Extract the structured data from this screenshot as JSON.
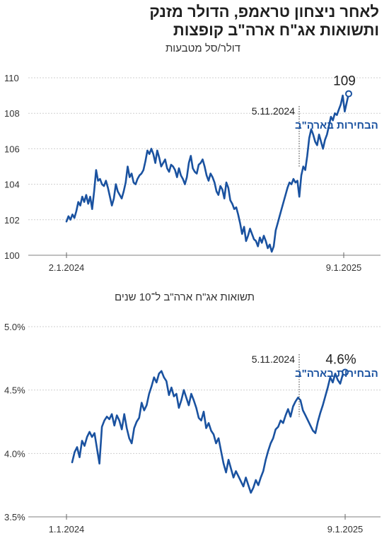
{
  "headline": {
    "line1": "לאחר ניצחון טראמפ, הדולר מזנק",
    "line2": "ותשואות אג\"ח ארה\"ב קופצות"
  },
  "colors": {
    "line": "#1a52a0",
    "accent_text": "#1a52a0",
    "axis": "#9a9a9a",
    "grid": "#cfcfcf"
  },
  "chart_data": [
    {
      "type": "line",
      "subtitle": "דולר/סל מטבעות",
      "ylim": [
        100,
        110
      ],
      "yticks": [
        "100",
        "102",
        "104",
        "106",
        "108",
        "110"
      ],
      "xtick_labels": [
        "2.1.2024",
        "9.1.2025"
      ],
      "end_label": "109",
      "annotation": {
        "date": "5.11.2024",
        "label": "הבחירות בארה\"ב"
      },
      "series": [
        {
          "values": [
            101.9,
            102.2,
            102.0,
            102.3,
            102.1,
            102.5,
            103.0,
            102.8,
            103.3,
            103.0,
            103.4,
            102.9,
            103.3,
            102.6,
            103.6,
            104.8,
            104.2,
            104.3,
            104.0,
            103.9,
            104.2,
            103.8,
            103.3,
            102.8,
            103.2,
            104.0,
            103.6,
            103.4,
            103.2,
            103.6,
            104.1,
            105.0,
            104.4,
            104.6,
            104.1,
            104.0,
            104.3,
            104.5,
            104.6,
            104.8,
            105.3,
            105.9,
            105.7,
            106.0,
            105.7,
            105.2,
            105.9,
            105.5,
            105.0,
            105.2,
            105.4,
            104.9,
            104.7,
            105.1,
            105.0,
            104.8,
            104.4,
            104.9,
            104.5,
            104.3,
            104.0,
            104.4,
            105.2,
            105.6,
            104.9,
            104.7,
            104.6,
            105.1,
            105.2,
            105.4,
            105.0,
            104.5,
            104.2,
            104.6,
            104.4,
            104.1,
            103.6,
            103.4,
            103.9,
            103.7,
            103.2,
            104.1,
            103.8,
            103.1,
            102.9,
            102.6,
            102.7,
            102.3,
            101.8,
            101.2,
            101.6,
            100.8,
            101.1,
            101.5,
            101.2,
            100.9,
            100.8,
            100.5,
            101.0,
            100.7,
            101.1,
            100.8,
            100.4,
            100.6,
            100.2,
            100.5,
            101.4,
            101.8,
            102.2,
            102.6,
            103.0,
            103.4,
            103.8,
            104.1,
            104.0,
            104.3,
            104.1,
            104.2,
            103.3,
            104.5,
            105.0,
            104.8,
            105.6,
            106.6,
            107.1,
            106.8,
            106.4,
            106.2,
            106.8,
            106.4,
            106.0,
            106.5,
            106.8,
            107.3,
            107.8,
            107.6,
            108.0,
            107.9,
            108.2,
            108.5,
            109.0,
            108.1,
            108.6,
            109.1
          ]
        }
      ]
    },
    {
      "type": "line",
      "subtitle": "תשואות אג\"ח ארה\"ב ל־10 שנים",
      "ylim": [
        3.5,
        5.0
      ],
      "yticks": [
        "3.5%",
        "4.0%",
        "4.5%",
        "5.0%"
      ],
      "xtick_labels": [
        "1.1.2024",
        "9.1.2025"
      ],
      "end_label": "4.6%",
      "annotation": {
        "date": "5.11.2024",
        "label": "הבחירות בארה\"ב"
      },
      "series": [
        {
          "values": [
            3.93,
            4.01,
            4.05,
            3.97,
            4.1,
            4.06,
            4.13,
            4.17,
            4.13,
            4.16,
            4.04,
            3.92,
            4.21,
            4.26,
            4.29,
            4.27,
            4.31,
            4.22,
            4.3,
            4.26,
            4.19,
            4.31,
            4.2,
            4.12,
            4.08,
            4.2,
            4.25,
            4.28,
            4.4,
            4.34,
            4.38,
            4.47,
            4.53,
            4.6,
            4.56,
            4.63,
            4.65,
            4.6,
            4.57,
            4.46,
            4.52,
            4.45,
            4.47,
            4.36,
            4.42,
            4.5,
            4.44,
            4.38,
            4.47,
            4.42,
            4.36,
            4.28,
            4.26,
            4.33,
            4.2,
            4.24,
            4.18,
            4.15,
            4.08,
            4.12,
            4.02,
            3.92,
            3.85,
            3.95,
            3.88,
            3.81,
            3.86,
            3.82,
            3.78,
            3.74,
            3.81,
            3.75,
            3.69,
            3.73,
            3.79,
            3.75,
            3.81,
            3.86,
            3.95,
            4.02,
            4.08,
            4.12,
            4.19,
            4.21,
            4.26,
            4.24,
            4.3,
            4.35,
            4.29,
            4.37,
            4.41,
            4.44,
            4.42,
            4.34,
            4.3,
            4.26,
            4.22,
            4.18,
            4.16,
            4.25,
            4.32,
            4.38,
            4.45,
            4.52,
            4.6,
            4.56,
            4.63,
            4.58,
            4.55,
            4.62,
            4.64
          ]
        }
      ]
    }
  ]
}
